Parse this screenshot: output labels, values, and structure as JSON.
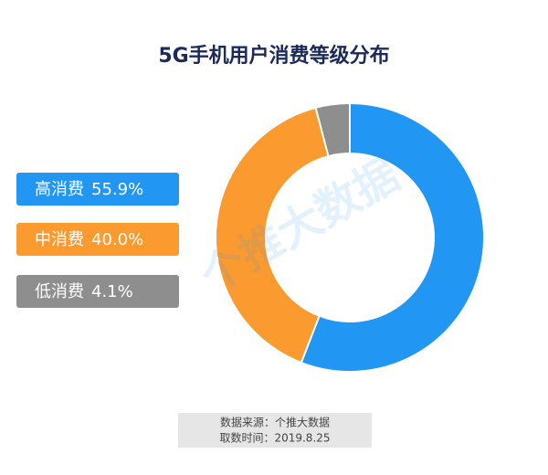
{
  "chart_data": {
    "type": "pie",
    "title": "5G手机用户消费等级分布",
    "categories": [
      "高消费",
      "中消费",
      "低消费"
    ],
    "values": [
      55.9,
      40.0,
      4.1
    ],
    "value_labels": [
      "55.9%",
      "40.0%",
      "4.1%"
    ],
    "colors": [
      "#2196f3",
      "#fb9a2f",
      "#8e8e8e"
    ],
    "watermark": "个推大数据"
  },
  "footer": {
    "source": "数据来源：个推大数据",
    "date": "取数时间：2019.8.25"
  }
}
